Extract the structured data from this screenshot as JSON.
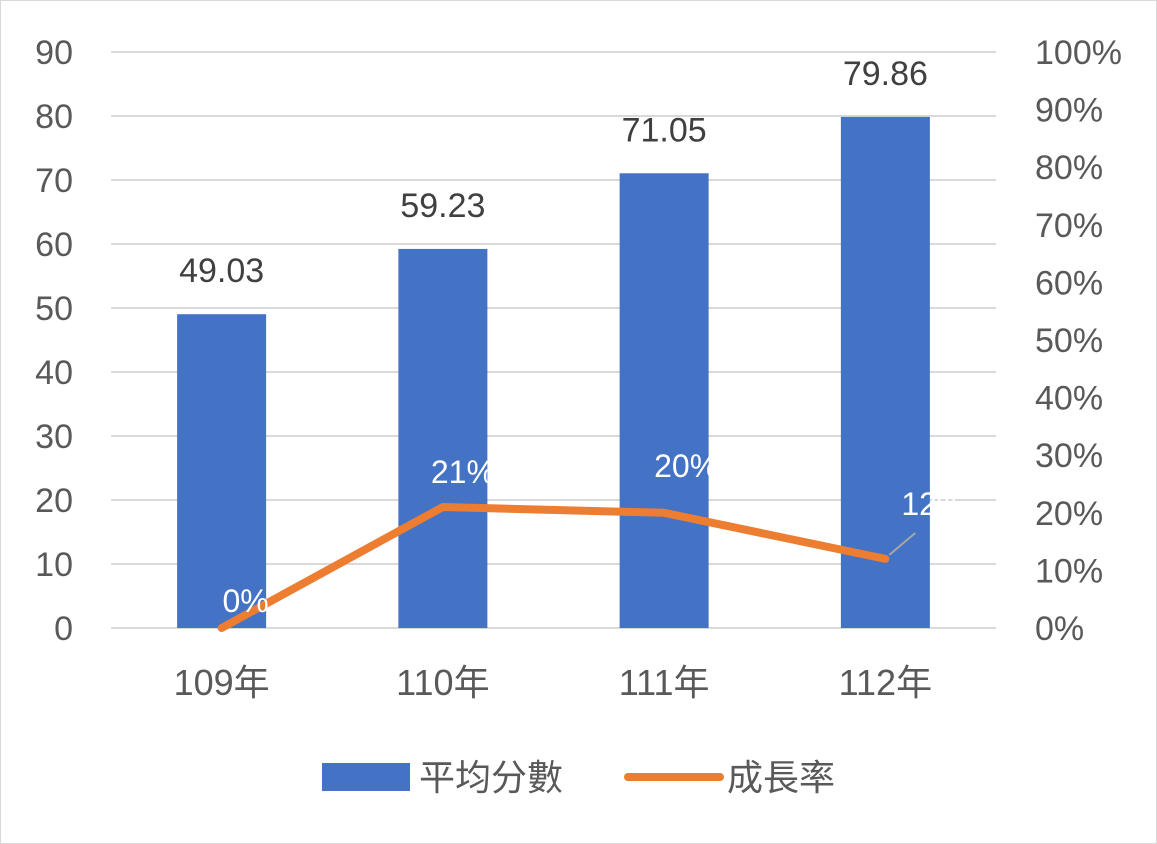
{
  "chart_data": {
    "type": "bar",
    "categories": [
      "109年",
      "110年",
      "111年",
      "112年"
    ],
    "series": [
      {
        "name": "平均分數",
        "kind": "bar",
        "axis": "left",
        "values": [
          49.03,
          59.23,
          71.05,
          79.86
        ],
        "labels": [
          "49.03",
          "59.23",
          "71.05",
          "79.86"
        ],
        "color": "#4472C4"
      },
      {
        "name": "成長率",
        "kind": "line",
        "axis": "right",
        "values": [
          0,
          0.21,
          0.2,
          0.12
        ],
        "labels": [
          "0%",
          "21%",
          "20%",
          "12%"
        ],
        "color": "#ED7D31"
      }
    ],
    "left_axis": {
      "min": 0,
      "max": 90,
      "step": 10,
      "ticks": [
        "0",
        "10",
        "20",
        "30",
        "40",
        "50",
        "60",
        "70",
        "80",
        "90"
      ]
    },
    "right_axis": {
      "min": 0,
      "max": 1,
      "step": 0.1,
      "ticks": [
        "0%",
        "10%",
        "20%",
        "30%",
        "40%",
        "50%",
        "60%",
        "70%",
        "80%",
        "90%",
        "100%"
      ]
    },
    "title": "",
    "xlabel": "",
    "ylabel": "",
    "grid": true,
    "legend": "bottom",
    "colors": {
      "grid": "#d9d9d9",
      "axis_text": "#595959",
      "data_label": "#404040",
      "leader": "#a6a6a6"
    }
  }
}
